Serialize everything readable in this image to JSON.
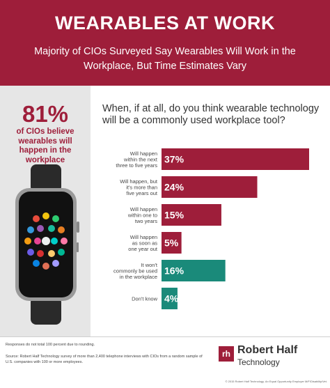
{
  "header": {
    "title": "WEARABLES AT WORK",
    "subtitle": "Majority of CIOs Surveyed Say Wearables Will Work in the Workplace, But Time Estimates Vary"
  },
  "highlight": {
    "value": "81%",
    "caption": "of CIOs believe wearables will happen in the workplace"
  },
  "colors": {
    "brand": "#9e1e3a",
    "teal": "#1a8a7a",
    "panel": "#e6e6e6"
  },
  "chart_data": {
    "type": "bar",
    "orientation": "horizontal",
    "title": "When, if at all, do you think wearable technology will be a commonly used workplace tool?",
    "categories": [
      "Will happen within the next three to five years",
      "Will happen, but it's more than five years out",
      "Will happen within one to two years",
      "Will happen as soon as one year out",
      "It won't commonly be used in the workplace",
      "Don't know"
    ],
    "category_lines": [
      [
        "Will happen",
        "within the next",
        "three to five years"
      ],
      [
        "Will happen, but",
        "it's more than",
        "five years out"
      ],
      [
        "Will happen",
        "within one to",
        "two years"
      ],
      [
        "Will happen",
        "as soon as",
        "one year out"
      ],
      [
        "It won't",
        "commonly be used",
        "in the workplace"
      ],
      [
        "Don't know"
      ]
    ],
    "values": [
      37,
      24,
      15,
      5,
      16,
      4
    ],
    "labels": [
      "37%",
      "24%",
      "15%",
      "5%",
      "16%",
      "4%"
    ],
    "bar_colors": [
      "#9e1e3a",
      "#9e1e3a",
      "#9e1e3a",
      "#9e1e3a",
      "#1a8a7a",
      "#1a8a7a"
    ],
    "xlim": [
      0,
      37
    ]
  },
  "footer": {
    "note": "Responses do not total 100 percent due to rounding.",
    "source": "Source: Robert Half Technology survey of more than 2,400 telephone interviews with CIOs from a random sample of U.S. companies with 100 or more employees.",
    "brand": "Robert Half",
    "brand_sub": "Technology",
    "legal": "© 2015 Robert Half Technology. An Equal Opportunity Employer M/F/Disability/Vet."
  }
}
